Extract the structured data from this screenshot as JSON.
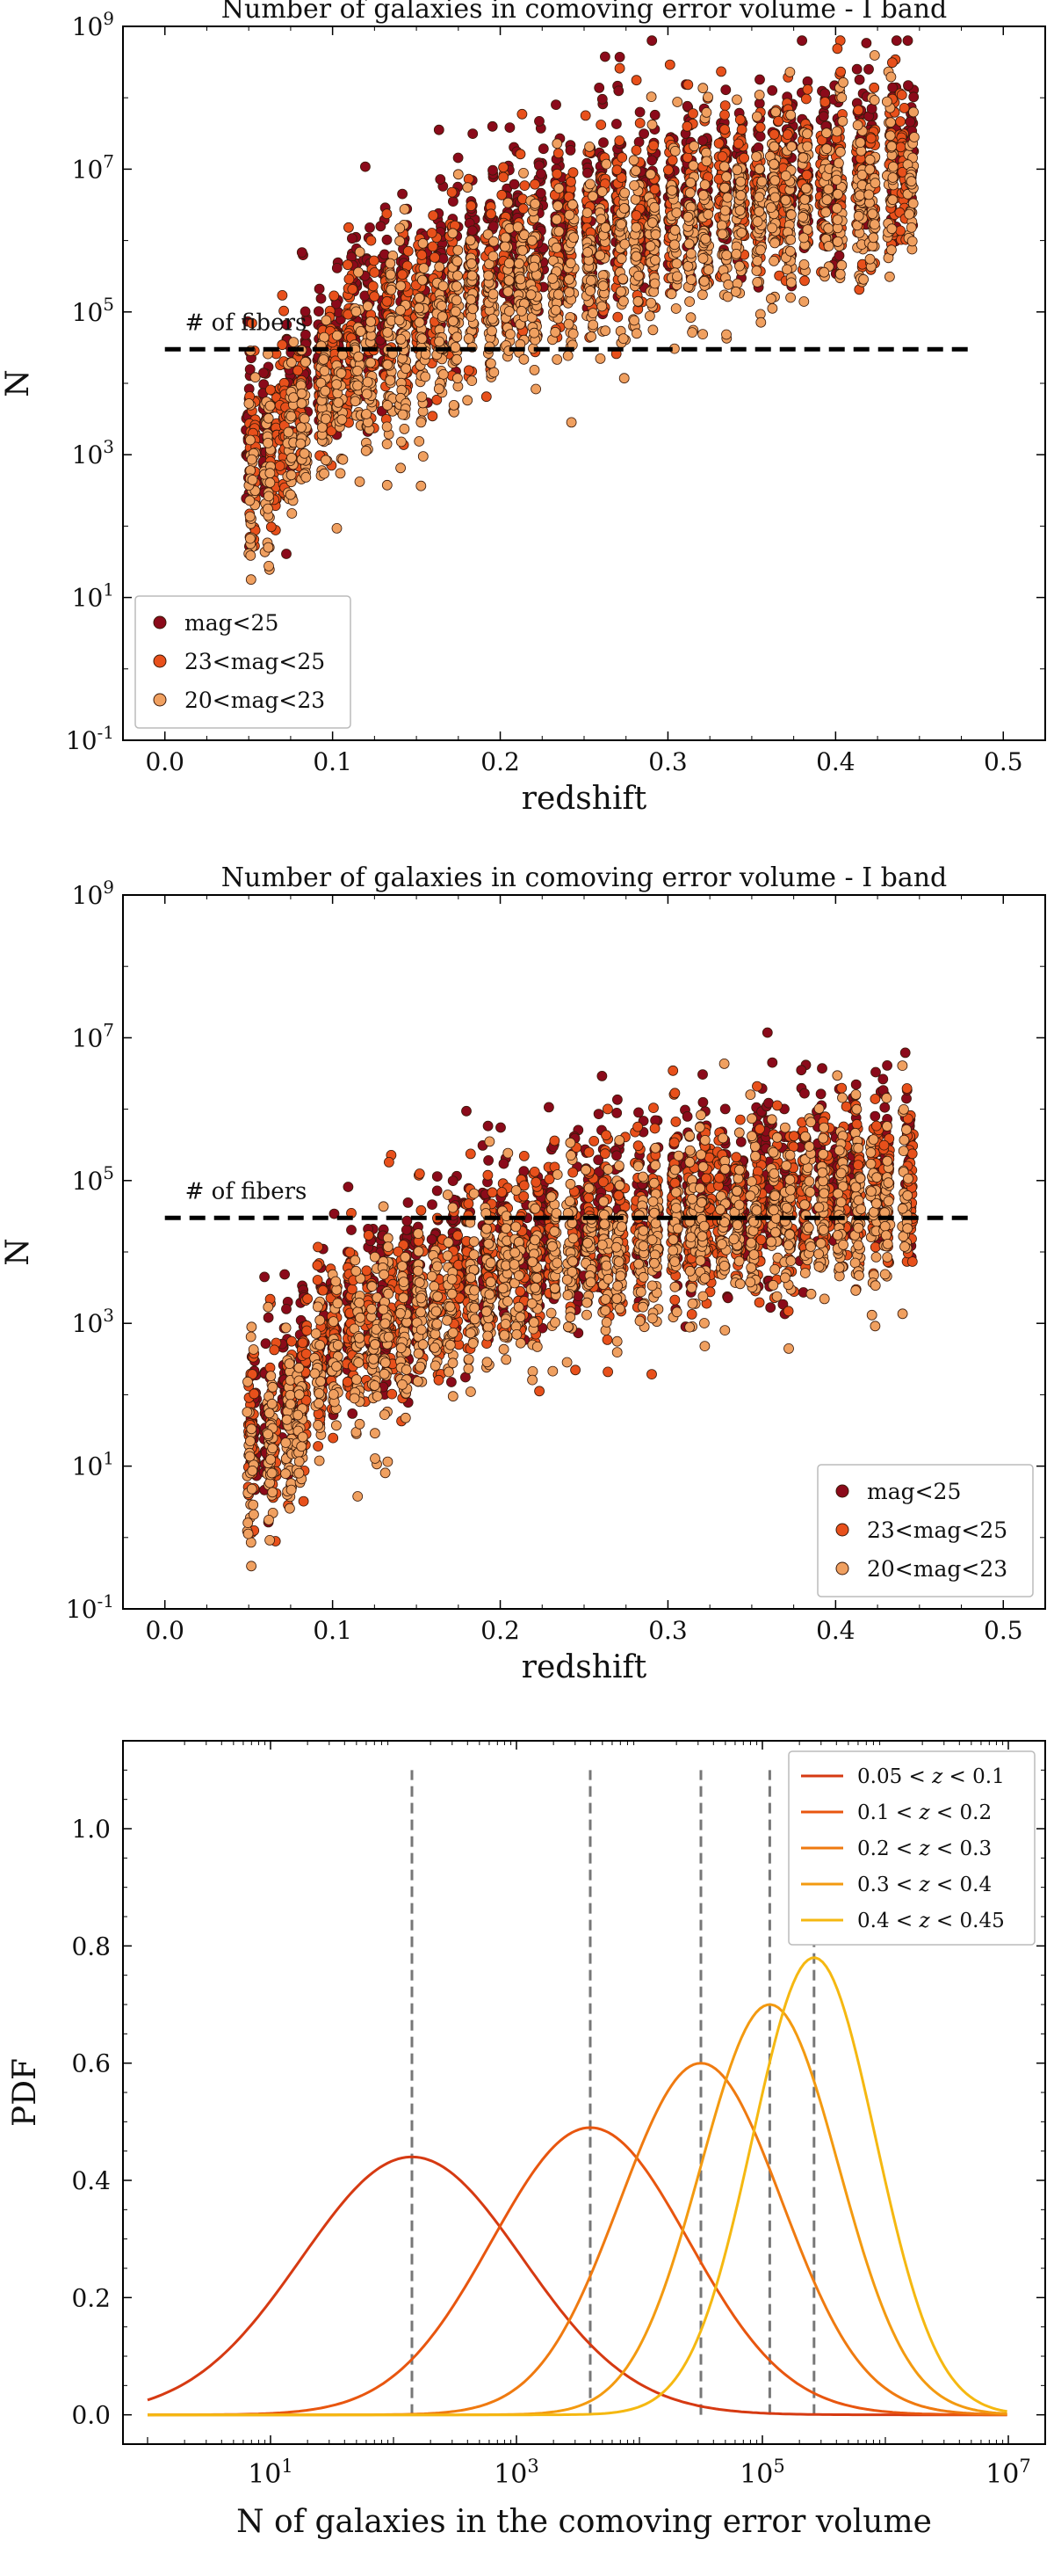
{
  "chart_data": [
    {
      "type": "scatter",
      "title": "Number of galaxies in comoving error volume - I band",
      "xlabel": "redshift",
      "ylabel": "N",
      "xlim": [
        -0.025,
        0.525
      ],
      "ylim_log10": [
        -1,
        9
      ],
      "xticks": [
        "0.0",
        "0.1",
        "0.2",
        "0.3",
        "0.4",
        "0.5"
      ],
      "yticks": [
        {
          "base": "10",
          "exp": "-1"
        },
        {
          "base": "10",
          "exp": "1"
        },
        {
          "base": "10",
          "exp": "3"
        },
        {
          "base": "10",
          "exp": "5"
        },
        {
          "base": "10",
          "exp": "7"
        },
        {
          "base": "10",
          "exp": "9"
        }
      ],
      "reference_line": {
        "label": "# of fibers",
        "value": 30000
      },
      "legend_position": "bottom-left",
      "series": [
        {
          "name": "mag<25",
          "color": "#8b0a1a",
          "redshift_range": [
            0.05,
            0.45
          ],
          "log10_N_center_at_z": [
            [
              0.06,
              3.4
            ],
            [
              0.1,
              4.6
            ],
            [
              0.2,
              5.9
            ],
            [
              0.3,
              6.6
            ],
            [
              0.4,
              7.0
            ],
            [
              0.45,
              7.2
            ]
          ]
        },
        {
          "name": "23<mag<25",
          "color": "#e8501b",
          "redshift_range": [
            0.05,
            0.45
          ],
          "log10_N_center_at_z": [
            [
              0.06,
              3.0
            ],
            [
              0.1,
              4.2
            ],
            [
              0.2,
              5.5
            ],
            [
              0.3,
              6.3
            ],
            [
              0.4,
              6.8
            ],
            [
              0.45,
              7.0
            ]
          ]
        },
        {
          "name": "20<mag<23",
          "color": "#f0a060",
          "redshift_range": [
            0.05,
            0.45
          ],
          "log10_N_center_at_z": [
            [
              0.06,
              2.6
            ],
            [
              0.1,
              3.8
            ],
            [
              0.2,
              5.1
            ],
            [
              0.3,
              5.9
            ],
            [
              0.4,
              6.5
            ],
            [
              0.45,
              6.7
            ]
          ]
        }
      ]
    },
    {
      "type": "scatter",
      "title": "Number of galaxies in comoving error volume - I band",
      "xlabel": "redshift",
      "ylabel": "N",
      "xlim": [
        -0.025,
        0.525
      ],
      "ylim_log10": [
        -1,
        9
      ],
      "xticks": [
        "0.0",
        "0.1",
        "0.2",
        "0.3",
        "0.4",
        "0.5"
      ],
      "yticks": [
        {
          "base": "10",
          "exp": "-1"
        },
        {
          "base": "10",
          "exp": "1"
        },
        {
          "base": "10",
          "exp": "3"
        },
        {
          "base": "10",
          "exp": "5"
        },
        {
          "base": "10",
          "exp": "7"
        },
        {
          "base": "10",
          "exp": "9"
        }
      ],
      "reference_line": {
        "label": "# of fibers",
        "value": 30000
      },
      "legend_position": "bottom-right",
      "series": [
        {
          "name": "mag<25",
          "color": "#8b0a1a",
          "redshift_range": [
            0.05,
            0.45
          ],
          "log10_N_center_at_z": [
            [
              0.06,
              1.6
            ],
            [
              0.1,
              3.0
            ],
            [
              0.2,
              4.0
            ],
            [
              0.3,
              4.6
            ],
            [
              0.4,
              5.0
            ],
            [
              0.45,
              5.1
            ]
          ]
        },
        {
          "name": "23<mag<25",
          "color": "#e8501b",
          "redshift_range": [
            0.05,
            0.45
          ],
          "log10_N_center_at_z": [
            [
              0.06,
              1.3
            ],
            [
              0.1,
              2.7
            ],
            [
              0.2,
              3.8
            ],
            [
              0.3,
              4.4
            ],
            [
              0.4,
              4.8
            ],
            [
              0.45,
              4.9
            ]
          ]
        },
        {
          "name": "20<mag<23",
          "color": "#f0a060",
          "redshift_range": [
            0.05,
            0.45
          ],
          "log10_N_center_at_z": [
            [
              0.06,
              1.0
            ],
            [
              0.1,
              2.4
            ],
            [
              0.2,
              3.5
            ],
            [
              0.3,
              4.1
            ],
            [
              0.4,
              4.5
            ],
            [
              0.45,
              4.6
            ]
          ]
        }
      ]
    },
    {
      "type": "line",
      "title": "",
      "xlabel": "N of galaxies in the comoving error volume",
      "ylabel": "PDF",
      "xscale": "log",
      "xlim_log10": [
        -0.2,
        7.3
      ],
      "ylim": [
        -0.05,
        1.15
      ],
      "xticks": [
        {
          "base": "10",
          "exp": "1"
        },
        {
          "base": "10",
          "exp": "3"
        },
        {
          "base": "10",
          "exp": "5"
        },
        {
          "base": "10",
          "exp": "7"
        }
      ],
      "yticks": [
        "0.0",
        "0.2",
        "0.4",
        "0.6",
        "0.8",
        "1.0"
      ],
      "legend_position": "top-right",
      "series": [
        {
          "name": "0.05 < z < 0.1",
          "label_parts": [
            "0.05 < ",
            "z",
            " < 0.1"
          ],
          "color": "#d63a12",
          "peak_log10_N": 2.15,
          "peak_pdf": 0.44,
          "width_log10": 0.9,
          "median_line_log10_N": 2.15
        },
        {
          "name": "0.1 < z < 0.2",
          "label_parts": [
            "0.1 < ",
            "z",
            " < 0.2"
          ],
          "color": "#e8560f",
          "peak_log10_N": 3.6,
          "peak_pdf": 0.49,
          "width_log10": 0.8,
          "median_line_log10_N": 3.6
        },
        {
          "name": "0.2 < z < 0.3",
          "label_parts": [
            "0.2 < ",
            "z",
            " < 0.3"
          ],
          "color": "#ef7a10",
          "peak_log10_N": 4.5,
          "peak_pdf": 0.6,
          "width_log10": 0.66,
          "median_line_log10_N": 4.5
        },
        {
          "name": "0.3 < z < 0.4",
          "label_parts": [
            "0.3 < ",
            "z",
            " < 0.4"
          ],
          "color": "#f39a10",
          "peak_log10_N": 5.06,
          "peak_pdf": 0.7,
          "width_log10": 0.56,
          "median_line_log10_N": 5.06
        },
        {
          "name": "0.4 < z < 0.45",
          "label_parts": [
            "0.4 < ",
            "z",
            " < 0.45"
          ],
          "color": "#f5b811",
          "peak_log10_N": 5.42,
          "peak_pdf": 0.78,
          "width_log10": 0.5,
          "median_line_log10_N": 5.42
        }
      ]
    }
  ]
}
